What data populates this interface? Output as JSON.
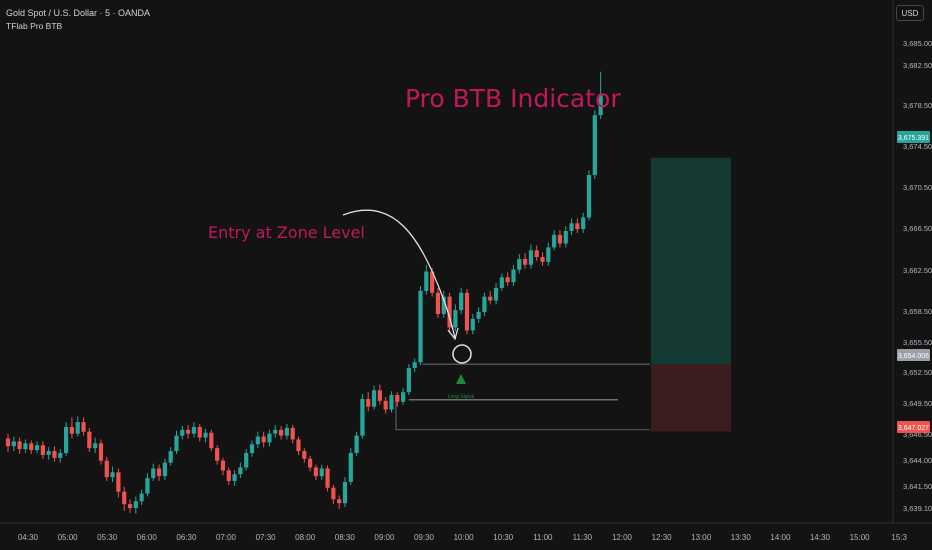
{
  "header": {
    "symbol": "Gold Spot / U.S. Dollar · 5 · OANDA",
    "indicator": "TFlab Pro BTB"
  },
  "currency_button": "USD",
  "colors": {
    "up": "#26a69a",
    "down": "#ef5350",
    "annotation": "#c2185b",
    "background": "#131313",
    "profit_zone": "#143a33",
    "loss_zone": "#3b1d20",
    "signal": "#1b8c3c"
  },
  "chart_data": {
    "type": "candlestick",
    "title": "Pro BTB Indicator",
    "annotation": "Entry at Zone Level",
    "signal_label": "Long Signal",
    "x_tick_labels": [
      "04:30",
      "05:00",
      "05:30",
      "06:00",
      "06:30",
      "07:00",
      "07:30",
      "08:00",
      "08:30",
      "09:00",
      "09:30",
      "10:00",
      "10:30",
      "11:00",
      "11:30",
      "12:00",
      "12:30",
      "13:00",
      "13:30",
      "14:00",
      "14:30",
      "15:00",
      "15:3"
    ],
    "y_tick_labels": [
      3685.0,
      3682.5,
      3678.5,
      3674.5,
      3670.5,
      3666.5,
      3662.5,
      3658.5,
      3655.5,
      3652.5,
      3649.5,
      3646.5,
      3644.0,
      3641.5,
      3639.1
    ],
    "ylim": [
      3638.0,
      3687.5
    ],
    "price_labels": [
      {
        "value": 3675.391,
        "text": "3,675.391",
        "kind": "take-profit"
      },
      {
        "value": 3654.006,
        "text": "3,654.006",
        "kind": "entry"
      },
      {
        "value": 3647.027,
        "text": "3,647.027",
        "kind": "stop-loss"
      }
    ],
    "zone": {
      "top": 3654.006,
      "bottom": 3650.3,
      "base": 3647.2
    },
    "series": [
      {
        "open": 3646.3,
        "close": 3645.5,
        "high": 3646.8,
        "low": 3644.9
      },
      {
        "open": 3645.5,
        "close": 3646.0,
        "high": 3646.5,
        "low": 3645.0
      },
      {
        "open": 3646.0,
        "close": 3645.2,
        "high": 3646.4,
        "low": 3644.7
      },
      {
        "open": 3645.2,
        "close": 3645.8,
        "high": 3646.2,
        "low": 3644.8
      },
      {
        "open": 3645.8,
        "close": 3645.1,
        "high": 3646.1,
        "low": 3644.7
      },
      {
        "open": 3645.1,
        "close": 3645.6,
        "high": 3646.0,
        "low": 3644.8
      },
      {
        "open": 3645.6,
        "close": 3644.6,
        "high": 3646.0,
        "low": 3644.2
      },
      {
        "open": 3644.6,
        "close": 3645.0,
        "high": 3645.4,
        "low": 3644.1
      },
      {
        "open": 3645.0,
        "close": 3644.3,
        "high": 3645.5,
        "low": 3643.9
      },
      {
        "open": 3644.3,
        "close": 3644.8,
        "high": 3645.2,
        "low": 3643.8
      },
      {
        "open": 3644.8,
        "close": 3647.5,
        "high": 3648.0,
        "low": 3644.5
      },
      {
        "open": 3647.5,
        "close": 3646.8,
        "high": 3648.5,
        "low": 3646.3
      },
      {
        "open": 3646.8,
        "close": 3648.0,
        "high": 3648.6,
        "low": 3646.5
      },
      {
        "open": 3648.0,
        "close": 3647.0,
        "high": 3648.5,
        "low": 3646.6
      },
      {
        "open": 3647.0,
        "close": 3645.3,
        "high": 3647.4,
        "low": 3644.9
      },
      {
        "open": 3645.3,
        "close": 3645.8,
        "high": 3646.4,
        "low": 3644.8
      },
      {
        "open": 3645.8,
        "close": 3644.0,
        "high": 3646.2,
        "low": 3643.6
      },
      {
        "open": 3644.0,
        "close": 3642.3,
        "high": 3644.4,
        "low": 3641.9
      },
      {
        "open": 3642.3,
        "close": 3642.8,
        "high": 3643.4,
        "low": 3641.8
      },
      {
        "open": 3642.8,
        "close": 3640.8,
        "high": 3643.2,
        "low": 3640.2
      },
      {
        "open": 3640.8,
        "close": 3639.5,
        "high": 3641.3,
        "low": 3638.8
      },
      {
        "open": 3639.5,
        "close": 3639.1,
        "high": 3640.0,
        "low": 3638.6
      },
      {
        "open": 3639.1,
        "close": 3639.8,
        "high": 3640.3,
        "low": 3638.5
      },
      {
        "open": 3639.8,
        "close": 3640.6,
        "high": 3641.0,
        "low": 3639.4
      },
      {
        "open": 3640.6,
        "close": 3642.2,
        "high": 3642.7,
        "low": 3640.3
      },
      {
        "open": 3642.2,
        "close": 3643.2,
        "high": 3643.7,
        "low": 3641.9
      },
      {
        "open": 3643.2,
        "close": 3642.4,
        "high": 3643.6,
        "low": 3641.9
      },
      {
        "open": 3642.4,
        "close": 3643.8,
        "high": 3644.2,
        "low": 3642.0
      },
      {
        "open": 3643.8,
        "close": 3645.0,
        "high": 3645.4,
        "low": 3643.5
      },
      {
        "open": 3645.0,
        "close": 3646.6,
        "high": 3647.1,
        "low": 3644.7
      },
      {
        "open": 3646.6,
        "close": 3647.2,
        "high": 3647.6,
        "low": 3646.2
      },
      {
        "open": 3647.2,
        "close": 3646.8,
        "high": 3647.7,
        "low": 3646.3
      },
      {
        "open": 3646.8,
        "close": 3647.5,
        "high": 3648.0,
        "low": 3646.4
      },
      {
        "open": 3647.5,
        "close": 3646.4,
        "high": 3647.8,
        "low": 3646.0
      },
      {
        "open": 3646.4,
        "close": 3646.9,
        "high": 3647.3,
        "low": 3645.9
      },
      {
        "open": 3646.9,
        "close": 3645.3,
        "high": 3647.2,
        "low": 3645.0
      },
      {
        "open": 3645.3,
        "close": 3644.0,
        "high": 3645.6,
        "low": 3643.6
      },
      {
        "open": 3644.0,
        "close": 3643.0,
        "high": 3644.3,
        "low": 3642.5
      },
      {
        "open": 3643.0,
        "close": 3641.9,
        "high": 3643.3,
        "low": 3641.5
      },
      {
        "open": 3641.9,
        "close": 3642.6,
        "high": 3643.0,
        "low": 3641.4
      },
      {
        "open": 3642.6,
        "close": 3643.3,
        "high": 3643.8,
        "low": 3642.2
      },
      {
        "open": 3643.3,
        "close": 3644.8,
        "high": 3645.2,
        "low": 3643.0
      },
      {
        "open": 3644.8,
        "close": 3645.7,
        "high": 3646.1,
        "low": 3644.4
      },
      {
        "open": 3645.7,
        "close": 3646.5,
        "high": 3647.0,
        "low": 3645.3
      },
      {
        "open": 3646.5,
        "close": 3645.9,
        "high": 3647.0,
        "low": 3645.4
      },
      {
        "open": 3645.9,
        "close": 3646.8,
        "high": 3647.2,
        "low": 3645.5
      },
      {
        "open": 3646.8,
        "close": 3647.2,
        "high": 3647.7,
        "low": 3646.4
      },
      {
        "open": 3647.2,
        "close": 3646.6,
        "high": 3647.6,
        "low": 3646.2
      },
      {
        "open": 3646.6,
        "close": 3647.4,
        "high": 3647.8,
        "low": 3646.2
      },
      {
        "open": 3647.4,
        "close": 3646.2,
        "high": 3647.7,
        "low": 3645.8
      },
      {
        "open": 3646.2,
        "close": 3645.0,
        "high": 3646.5,
        "low": 3644.6
      },
      {
        "open": 3645.0,
        "close": 3644.2,
        "high": 3645.3,
        "low": 3643.8
      },
      {
        "open": 3644.2,
        "close": 3643.3,
        "high": 3644.5,
        "low": 3642.9
      },
      {
        "open": 3643.3,
        "close": 3642.4,
        "high": 3643.6,
        "low": 3642.0
      },
      {
        "open": 3642.4,
        "close": 3643.2,
        "high": 3643.6,
        "low": 3642.0
      },
      {
        "open": 3643.2,
        "close": 3641.2,
        "high": 3643.5,
        "low": 3640.8
      },
      {
        "open": 3641.2,
        "close": 3640.0,
        "high": 3641.5,
        "low": 3639.5
      },
      {
        "open": 3640.0,
        "close": 3639.6,
        "high": 3640.4,
        "low": 3639.0
      },
      {
        "open": 3639.6,
        "close": 3641.8,
        "high": 3642.3,
        "low": 3639.2
      },
      {
        "open": 3641.8,
        "close": 3644.8,
        "high": 3645.3,
        "low": 3641.5
      },
      {
        "open": 3644.8,
        "close": 3646.6,
        "high": 3647.0,
        "low": 3644.5
      },
      {
        "open": 3646.6,
        "close": 3650.4,
        "high": 3650.9,
        "low": 3646.3
      },
      {
        "open": 3650.4,
        "close": 3649.6,
        "high": 3651.1,
        "low": 3649.1
      },
      {
        "open": 3649.6,
        "close": 3651.3,
        "high": 3651.8,
        "low": 3649.3
      },
      {
        "open": 3651.3,
        "close": 3650.2,
        "high": 3651.9,
        "low": 3649.8
      },
      {
        "open": 3650.2,
        "close": 3649.3,
        "high": 3650.6,
        "low": 3648.9
      },
      {
        "open": 3649.3,
        "close": 3650.8,
        "high": 3651.2,
        "low": 3649.0
      },
      {
        "open": 3650.8,
        "close": 3650.1,
        "high": 3651.1,
        "low": 3649.6
      },
      {
        "open": 3650.1,
        "close": 3651.1,
        "high": 3651.5,
        "low": 3649.8
      },
      {
        "open": 3651.1,
        "close": 3653.6,
        "high": 3654.0,
        "low": 3650.8
      },
      {
        "open": 3653.6,
        "close": 3654.2,
        "high": 3654.6,
        "low": 3653.2
      },
      {
        "open": 3654.2,
        "close": 3661.6,
        "high": 3662.1,
        "low": 3653.9
      },
      {
        "open": 3661.6,
        "close": 3663.6,
        "high": 3664.3,
        "low": 3661.2
      },
      {
        "open": 3663.6,
        "close": 3661.4,
        "high": 3664.0,
        "low": 3661.0
      },
      {
        "open": 3661.4,
        "close": 3659.2,
        "high": 3661.9,
        "low": 3658.8
      },
      {
        "open": 3659.2,
        "close": 3661.0,
        "high": 3661.6,
        "low": 3658.8
      },
      {
        "open": 3661.0,
        "close": 3657.8,
        "high": 3661.4,
        "low": 3657.2
      },
      {
        "open": 3657.8,
        "close": 3659.6,
        "high": 3660.2,
        "low": 3657.4
      },
      {
        "open": 3659.6,
        "close": 3661.4,
        "high": 3661.9,
        "low": 3659.2
      },
      {
        "open": 3661.4,
        "close": 3657.5,
        "high": 3661.8,
        "low": 3657.1
      },
      {
        "open": 3657.5,
        "close": 3658.7,
        "high": 3659.2,
        "low": 3657.1
      },
      {
        "open": 3658.7,
        "close": 3659.4,
        "high": 3659.9,
        "low": 3658.3
      },
      {
        "open": 3659.4,
        "close": 3661.0,
        "high": 3661.4,
        "low": 3659.0
      },
      {
        "open": 3661.0,
        "close": 3660.6,
        "high": 3661.6,
        "low": 3660.2
      },
      {
        "open": 3660.6,
        "close": 3661.9,
        "high": 3662.4,
        "low": 3660.2
      },
      {
        "open": 3661.9,
        "close": 3663.0,
        "high": 3663.4,
        "low": 3661.6
      },
      {
        "open": 3663.0,
        "close": 3662.5,
        "high": 3663.5,
        "low": 3662.1
      },
      {
        "open": 3662.5,
        "close": 3663.8,
        "high": 3664.3,
        "low": 3662.1
      },
      {
        "open": 3663.8,
        "close": 3664.9,
        "high": 3665.4,
        "low": 3663.4
      },
      {
        "open": 3664.9,
        "close": 3664.3,
        "high": 3665.5,
        "low": 3663.9
      },
      {
        "open": 3664.3,
        "close": 3665.8,
        "high": 3666.4,
        "low": 3663.9
      },
      {
        "open": 3665.8,
        "close": 3665.1,
        "high": 3666.3,
        "low": 3664.7
      },
      {
        "open": 3665.1,
        "close": 3664.6,
        "high": 3665.6,
        "low": 3664.2
      },
      {
        "open": 3664.6,
        "close": 3666.1,
        "high": 3666.6,
        "low": 3664.2
      },
      {
        "open": 3666.1,
        "close": 3667.4,
        "high": 3667.9,
        "low": 3665.8
      },
      {
        "open": 3667.4,
        "close": 3666.5,
        "high": 3667.9,
        "low": 3666.1
      },
      {
        "open": 3666.5,
        "close": 3667.8,
        "high": 3668.3,
        "low": 3666.1
      },
      {
        "open": 3667.8,
        "close": 3668.6,
        "high": 3669.1,
        "low": 3667.4
      },
      {
        "open": 3668.6,
        "close": 3668.0,
        "high": 3669.1,
        "low": 3667.6
      },
      {
        "open": 3668.0,
        "close": 3669.2,
        "high": 3669.7,
        "low": 3667.6
      },
      {
        "open": 3669.2,
        "close": 3673.6,
        "high": 3674.1,
        "low": 3668.9
      },
      {
        "open": 3673.6,
        "close": 3679.8,
        "high": 3680.3,
        "low": 3673.2
      },
      {
        "open": 3679.8,
        "close": 3682.0,
        "high": 3684.3,
        "low": 3679.4
      }
    ]
  }
}
